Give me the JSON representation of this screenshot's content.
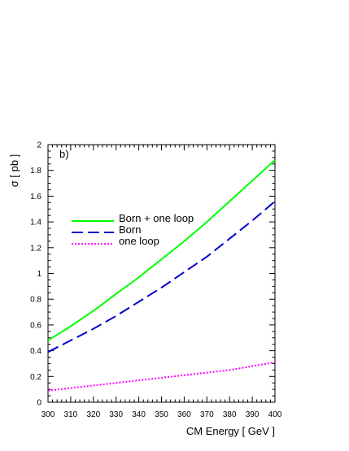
{
  "chart_data": {
    "type": "line",
    "panel_label": "b)",
    "xlabel": "CM Energy [ GeV ]",
    "ylabel": "σ  [ pb ]",
    "xlim": [
      300,
      400
    ],
    "ylim": [
      0,
      2
    ],
    "x_ticks": [
      300,
      310,
      320,
      330,
      340,
      350,
      360,
      370,
      380,
      390,
      400
    ],
    "y_ticks": [
      "0",
      "0.2",
      "0.4",
      "0.6",
      "0.8",
      "1",
      "1.2",
      "1.4",
      "1.6",
      "1.8",
      "2"
    ],
    "grid": false,
    "legend_position": "left-middle",
    "x": [
      300,
      310,
      320,
      330,
      340,
      350,
      360,
      370,
      380,
      390,
      400
    ],
    "series": [
      {
        "name": "Born + one loop",
        "color": "#00ff00",
        "style": "solid",
        "values": [
          0.48,
          0.59,
          0.71,
          0.84,
          0.97,
          1.11,
          1.25,
          1.4,
          1.56,
          1.72,
          1.88
        ]
      },
      {
        "name": "Born",
        "color": "#0000cc",
        "style": "dashed",
        "values": [
          0.39,
          0.48,
          0.57,
          0.67,
          0.78,
          0.89,
          1.01,
          1.13,
          1.27,
          1.41,
          1.56
        ]
      },
      {
        "name": "one loop",
        "color": "#ff00ff",
        "style": "dotted",
        "values": [
          0.09,
          0.11,
          0.13,
          0.15,
          0.17,
          0.19,
          0.21,
          0.23,
          0.25,
          0.28,
          0.31
        ]
      }
    ]
  }
}
